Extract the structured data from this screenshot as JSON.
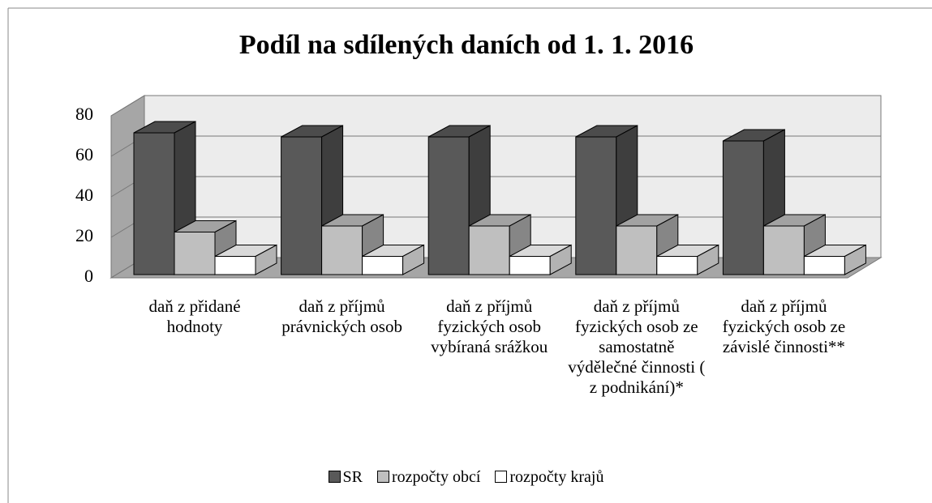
{
  "chart_data": {
    "type": "bar3d",
    "title": "Podíl na sdílených daních od 1. 1. 2016",
    "categories": [
      "daň z přidané hodnoty",
      "daň z příjmů právnických osob",
      "daň z příjmů fyzických osob vybíraná srážkou",
      "daň z příjmů fyzických osob ze samostatně výdělečné činnosti ( z podnikání)*",
      "daň z příjmů fyzických osob ze závislé činnosti**"
    ],
    "series": [
      {
        "name": "SR",
        "color": "#595959",
        "values": [
          70,
          68,
          68,
          68,
          66
        ]
      },
      {
        "name": "rozpočty obcí",
        "color": "#bfbfbf",
        "values": [
          21,
          24,
          24,
          24,
          24
        ]
      },
      {
        "name": "rozpočty krajů",
        "color": "#ffffff",
        "values": [
          9,
          9,
          9,
          9,
          9
        ]
      }
    ],
    "ylim": [
      0,
      80
    ],
    "yticks": [
      0,
      20,
      40,
      60,
      80
    ],
    "grid": true,
    "legend": "bottom"
  }
}
